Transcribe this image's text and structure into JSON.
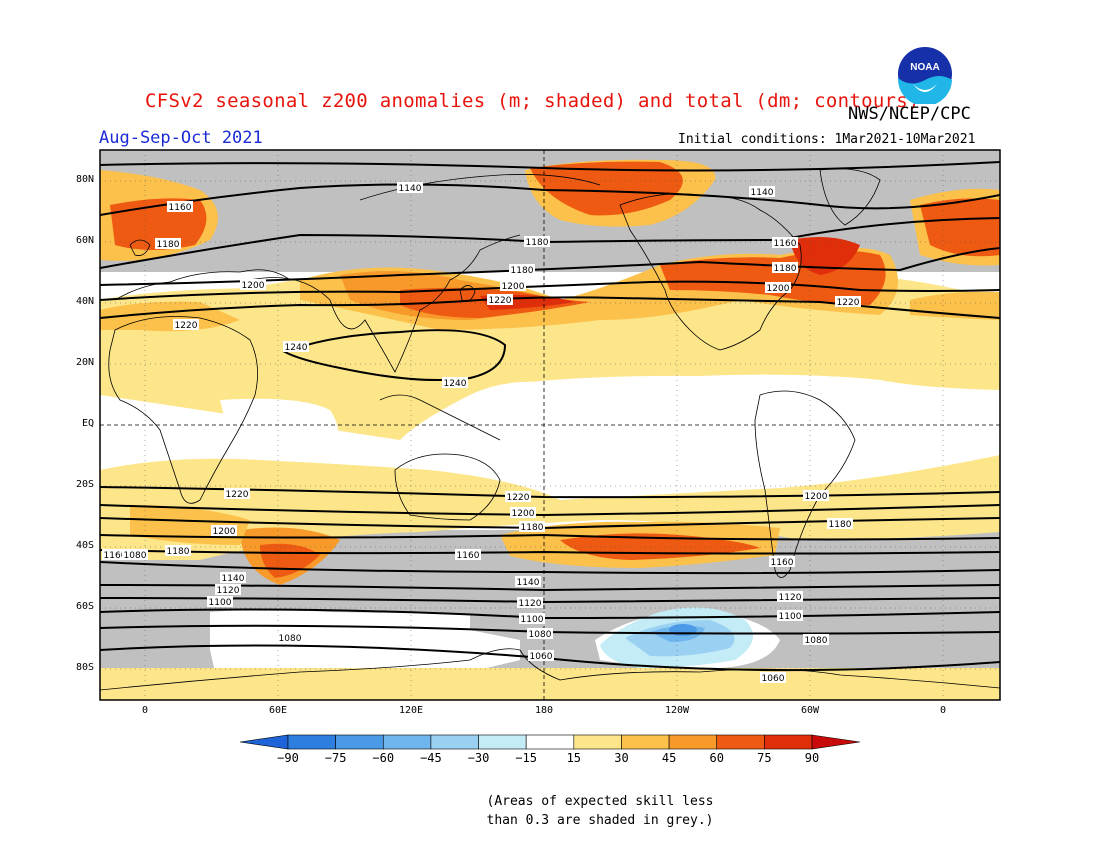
{
  "header": {
    "title": "CFSv2 seasonal z200 anomalies (m; shaded) and total (dm; contours)",
    "agency": "NWS/NCEP/CPC",
    "season": "Aug-Sep-Oct 2021",
    "initial_conditions": "Initial conditions: 1Mar2021-10Mar2021",
    "logo_text": "NOAA"
  },
  "axes": {
    "lat_labels": [
      "80N",
      "60N",
      "40N",
      "20N",
      "EQ",
      "20S",
      "40S",
      "60S",
      "80S"
    ],
    "lon_labels": [
      "0",
      "60E",
      "120E",
      "180",
      "120W",
      "60W",
      "0"
    ]
  },
  "colorbar": {
    "labels": [
      "-90",
      "-75",
      "-60",
      "-45",
      "-30",
      "-15",
      "15",
      "30",
      "45",
      "60",
      "75",
      "90"
    ],
    "colors": [
      "#1e64d8",
      "#2e7ee0",
      "#4a9ae8",
      "#6fb6ee",
      "#9ad0f2",
      "#c3ecf6",
      "#ffffff",
      "#fde68a",
      "#fcc14a",
      "#f89a2a",
      "#ef5a12",
      "#e02e0a",
      "#c80a0a"
    ]
  },
  "legend_note": {
    "line1": "(Areas of expected skill less",
    "line2": "than 0.3 are shaded in grey.)"
  },
  "contour_labels": [
    "1140",
    "1140",
    "1160",
    "1160",
    "1180",
    "1180",
    "1180",
    "1180",
    "1200",
    "1200",
    "1200",
    "1220",
    "1220",
    "1220",
    "1240",
    "1240",
    "1220",
    "1220",
    "1200",
    "1200",
    "1200",
    "1180",
    "1180",
    "1180",
    "1160",
    "1160",
    "1160",
    "1140",
    "1140",
    "1120",
    "1120",
    "1120",
    "1100",
    "1100",
    "1100",
    "1080",
    "1080",
    "1080",
    "1080",
    "1060",
    "1060"
  ],
  "colors": {
    "grey_skill": "#c0c0c0",
    "title_red": "#e8140c",
    "season_blue": "#1a2bd6"
  }
}
